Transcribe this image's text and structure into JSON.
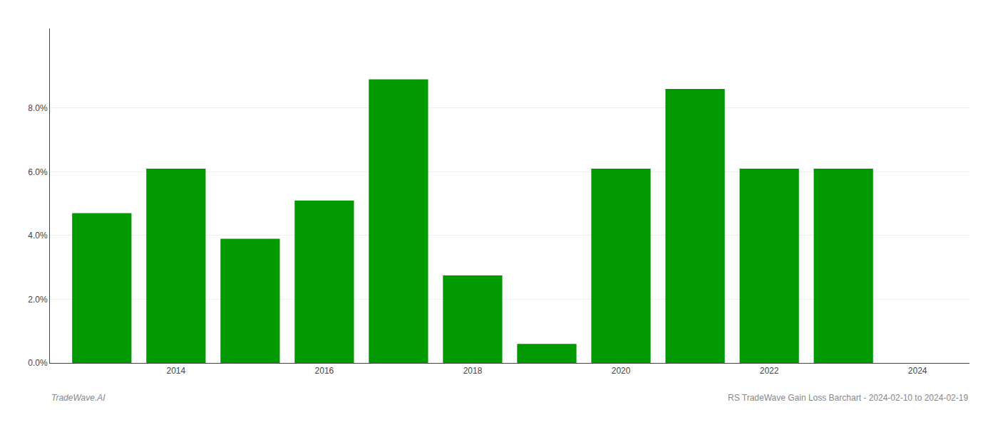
{
  "chart_data": {
    "type": "bar",
    "x": [
      2013,
      2014,
      2015,
      2016,
      2017,
      2018,
      2019,
      2020,
      2021,
      2022,
      2023
    ],
    "values": [
      0.047,
      0.061,
      0.039,
      0.051,
      0.089,
      0.0275,
      0.006,
      0.061,
      0.086,
      0.061,
      0.061
    ],
    "color": "#009900",
    "xlim": [
      2012.3,
      2024.7
    ],
    "xticks": [
      2014,
      2016,
      2018,
      2020,
      2022,
      2024
    ],
    "ylim": [
      0,
      0.105
    ],
    "yticks": [
      {
        "value": 0.0,
        "label": "0.0%"
      },
      {
        "value": 0.02,
        "label": "2.0%"
      },
      {
        "value": 0.04,
        "label": "4.0%"
      },
      {
        "value": 0.06,
        "label": "6.0%"
      },
      {
        "value": 0.08,
        "label": "8.0%"
      }
    ],
    "grid": true,
    "annotations": [
      "TradeWave.AI",
      "RS TradeWave Gain Loss Barchart - 2024-02-10 to 2024-02-19"
    ]
  }
}
